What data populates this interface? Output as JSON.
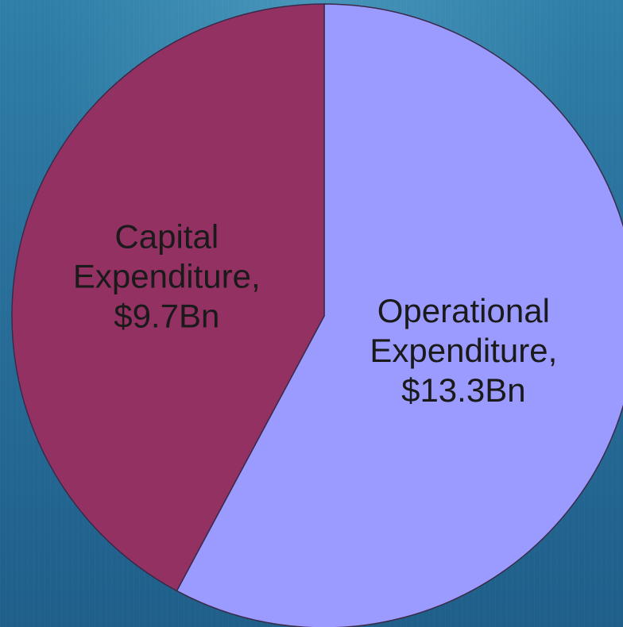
{
  "chart_data": {
    "type": "pie",
    "title": "",
    "slices": [
      {
        "label_lines": [
          "Operational",
          "Expenditure,",
          "$13.3Bn"
        ],
        "category": "Operational Expenditure",
        "value": 13.3,
        "display_value": "$13.3Bn",
        "color": "#9b9bff"
      },
      {
        "label_lines": [
          "Capital",
          "Expenditure,",
          "$9.7Bn"
        ],
        "category": "Capital Expenditure",
        "value": 9.7,
        "display_value": "$9.7Bn",
        "color": "#943163"
      }
    ],
    "start_angle_deg": 0,
    "direction": "clockwise",
    "legend": "none",
    "border_color": "#3a2a4a"
  }
}
